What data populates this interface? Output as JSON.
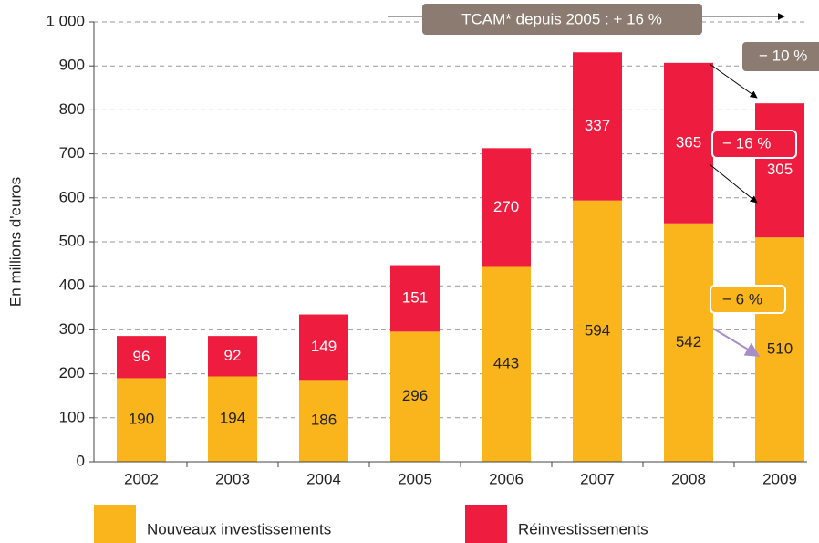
{
  "chart_data": {
    "type": "stacked_bar",
    "y_label": "En millions d'euros",
    "categories": [
      "2002",
      "2003",
      "2004",
      "2005",
      "2006",
      "2007",
      "2008",
      "2009"
    ],
    "series": [
      {
        "name": "Nouveaux investissements",
        "color": "#f9b51b",
        "values": [
          190,
          194,
          186,
          296,
          443,
          594,
          542,
          510
        ]
      },
      {
        "name": "Réinvestissements",
        "color": "#ee1c3e",
        "values": [
          96,
          92,
          149,
          151,
          270,
          337,
          365,
          305
        ]
      }
    ],
    "ylim": [
      0,
      1000
    ],
    "yticks": [
      0,
      100,
      200,
      300,
      400,
      500,
      600,
      700,
      800,
      900,
      {
        "value": 1000,
        "label": "1 000"
      }
    ],
    "grid": true,
    "annotations": [
      "TCAM* depuis 2005 : + 16 %",
      "− 10 %",
      "− 16 %",
      "− 6 %"
    ]
  }
}
